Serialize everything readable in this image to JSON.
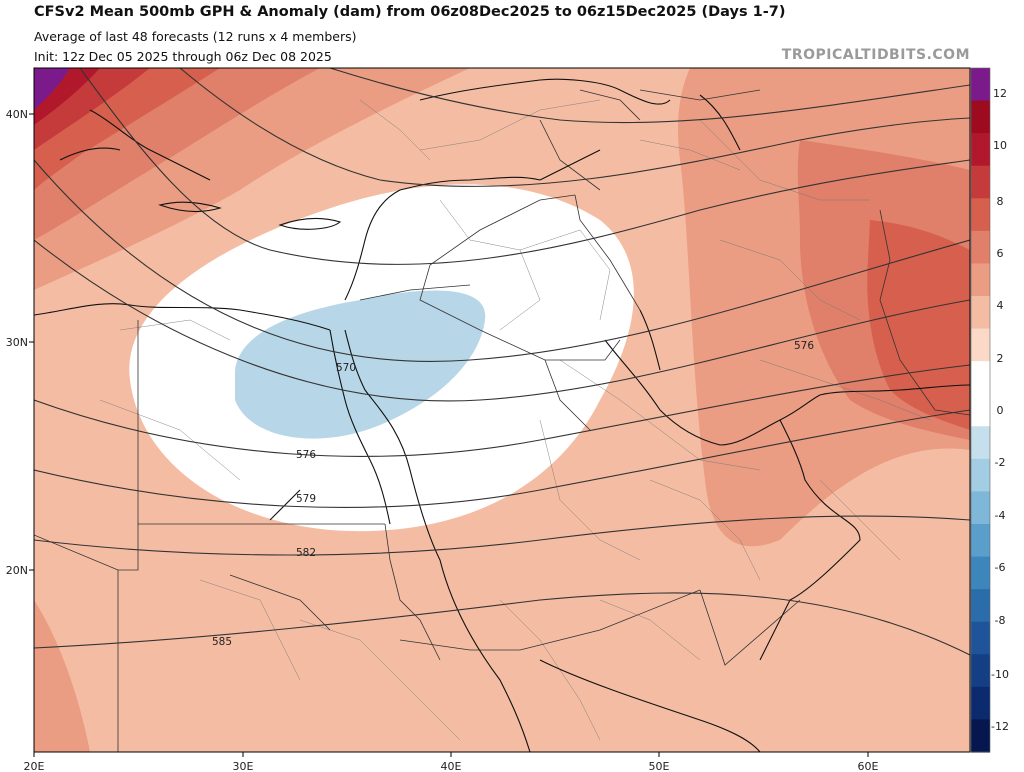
{
  "header": {
    "title": "CFSv2 Mean 500mb GPH & Anomaly (dam) from 06z08Dec2025 to 06z15Dec2025 (Days 1-7)",
    "line2": "Average of last 48 forecasts (12 runs x 4 members)",
    "line3": "Init: 12z Dec 05 2025 through 06z Dec 08 2025",
    "watermark": "TROPICALTIDBITS.COM"
  },
  "axes": {
    "lon_labels": [
      "20E",
      "30E",
      "40E",
      "50E",
      "60E"
    ],
    "lat_labels": [
      "40N",
      "30N",
      "20N"
    ]
  },
  "contour_labels": [
    "570",
    "576",
    "579",
    "582",
    "585",
    "576"
  ],
  "colorbar": {
    "labels": [
      "12",
      "10",
      "8",
      "6",
      "4",
      "2",
      "0",
      "-2",
      "-4",
      "-6",
      "-8",
      "-10",
      "-12"
    ],
    "colors": [
      "#7b1a8a",
      "#9e0a1e",
      "#b2182b",
      "#c53a3a",
      "#d6604d",
      "#e0806a",
      "#ea9d83",
      "#f4bda3",
      "#fad9c7",
      "#ffffff",
      "#ffffff",
      "#c5dfec",
      "#a2cde3",
      "#7eb7d8",
      "#5a9fcb",
      "#3c86bb",
      "#2b6cab",
      "#1f549a",
      "#143f85",
      "#0b2b6e",
      "#06174f"
    ]
  }
}
